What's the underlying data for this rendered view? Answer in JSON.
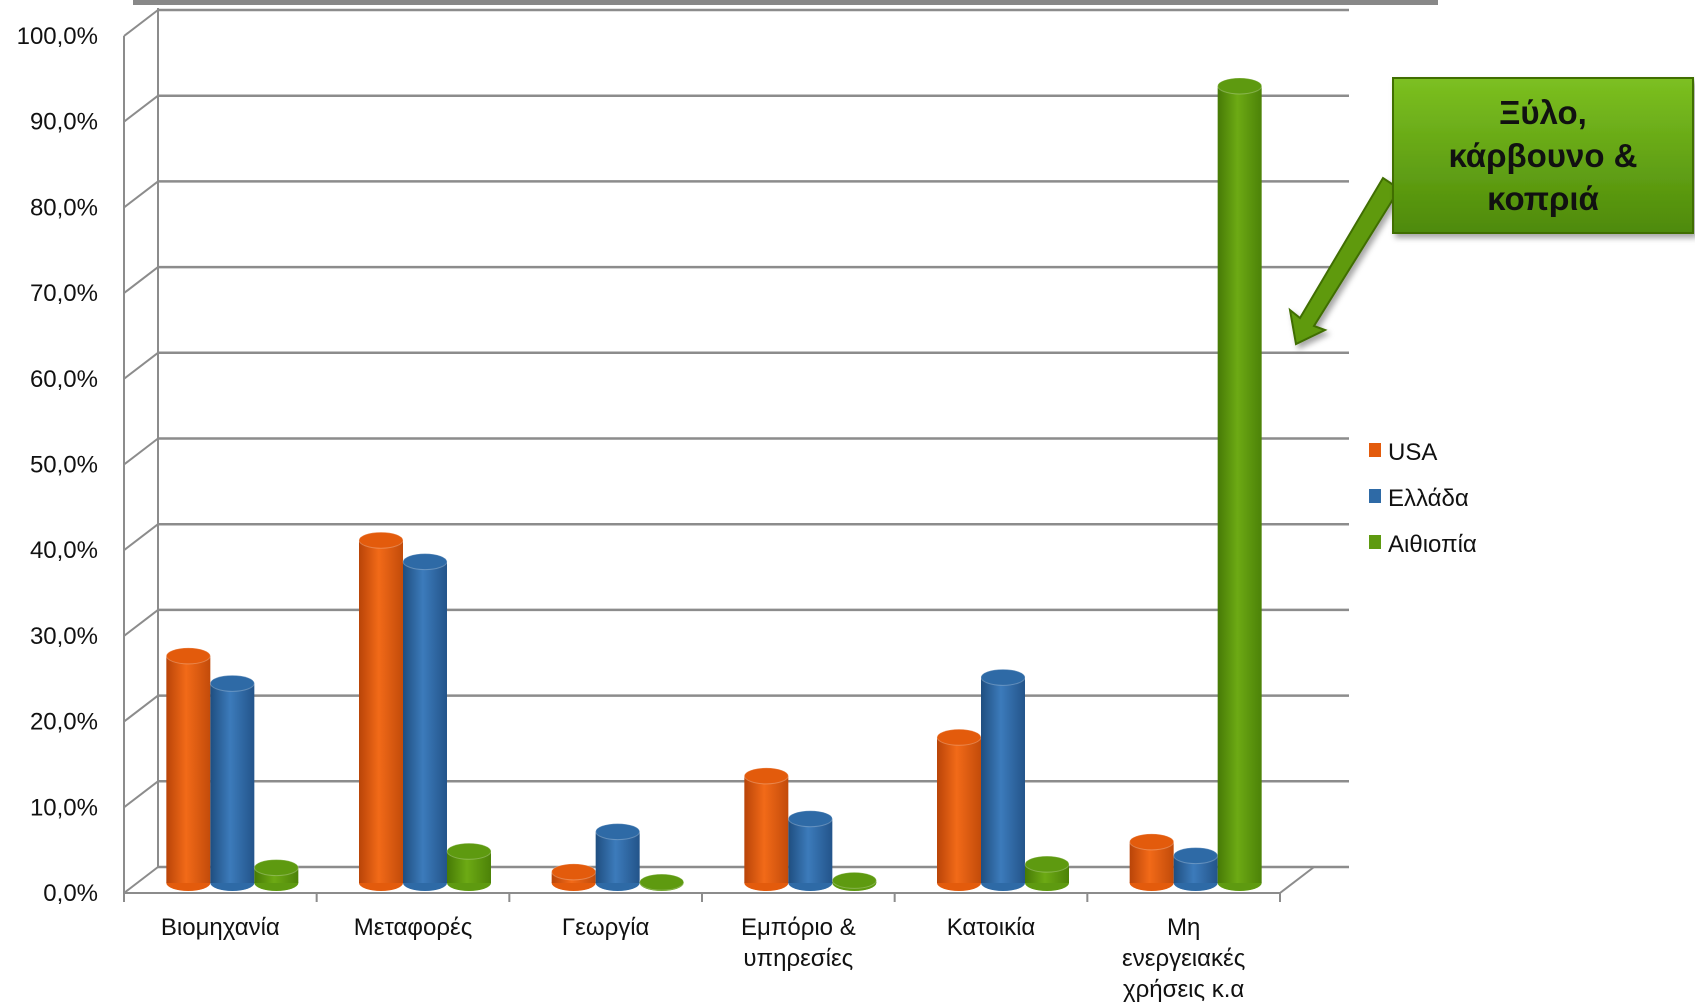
{
  "chart_data": {
    "type": "bar",
    "categories": [
      [
        "Βιομηχανία"
      ],
      [
        "Μεταφορές"
      ],
      [
        "Γεωργία"
      ],
      [
        "Εμπόριο &",
        "υπηρεσίες"
      ],
      [
        "Κατοικία"
      ],
      [
        "Μη",
        "ενεργειακές",
        "χρήσεις κ.α"
      ]
    ],
    "series": [
      {
        "name": "USA",
        "color": "#E35B0C",
        "values": [
          26.5,
          40.0,
          1.3,
          12.5,
          17.0,
          4.8
        ]
      },
      {
        "name": "Ελλάδα",
        "color": "#2E6AA6",
        "values": [
          23.3,
          37.5,
          6.0,
          7.5,
          24.0,
          3.2
        ]
      },
      {
        "name": "Αιθιοπία",
        "color": "#5E9A10",
        "values": [
          1.8,
          3.7,
          0.1,
          0.3,
          2.2,
          93.0
        ]
      }
    ],
    "ylim": [
      0,
      100
    ],
    "yticks": [
      "0,0%",
      "10,0%",
      "20,0%",
      "30,0%",
      "40,0%",
      "50,0%",
      "60,0%",
      "70,0%",
      "80,0%",
      "90,0%",
      "100,0%"
    ],
    "grid": true,
    "legend_position": "right",
    "annotation": {
      "lines": [
        "Ξύλο,",
        "κάρβουνο &",
        "κοπριά"
      ],
      "color": "#5E9A10"
    }
  }
}
